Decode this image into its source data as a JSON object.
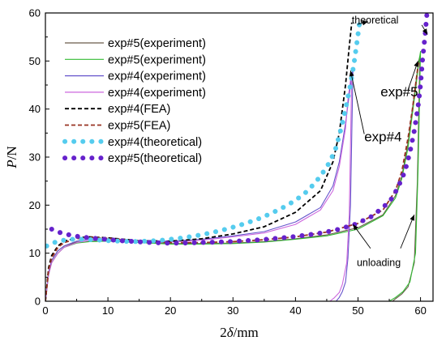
{
  "chart_data": {
    "type": "line",
    "title": "",
    "xlabel_prefix": "2",
    "xlabel_symbol": "δ",
    "xlabel_unit": "/mm",
    "ylabel_symbol": "P",
    "ylabel_unit": "/N",
    "xlim": [
      0,
      62
    ],
    "ylim": [
      0,
      60
    ],
    "xticks": [
      0,
      10,
      20,
      30,
      40,
      50,
      60
    ],
    "yticks": [
      0,
      10,
      20,
      30,
      40,
      50,
      60
    ],
    "grid": false,
    "legend_position": "top-left",
    "series": [
      {
        "name": "exp#5(experiment)",
        "color": "#6b5a4a",
        "style": "solid",
        "x": [
          0,
          0.5,
          1,
          2,
          3,
          5,
          7,
          10,
          15,
          20,
          25,
          30,
          35,
          40,
          45,
          50,
          54,
          56,
          57,
          58,
          58.7,
          59.3,
          59.7,
          59.9,
          59.5,
          59,
          58,
          57,
          56,
          55.5
        ],
        "y": [
          0,
          6,
          8.5,
          10.5,
          11.5,
          12.3,
          12.5,
          12.6,
          12.3,
          12,
          12,
          12.1,
          12.4,
          13,
          13.8,
          15.3,
          18,
          22,
          26,
          33,
          40,
          46,
          50,
          51,
          25,
          8,
          3,
          1.5,
          0.5,
          0
        ]
      },
      {
        "name": "exp#5(experiment)",
        "color": "#33bb33",
        "style": "solid",
        "x": [
          0,
          0.5,
          1,
          2,
          3,
          5,
          7,
          10,
          15,
          20,
          25,
          30,
          35,
          40,
          45,
          50,
          54,
          56,
          57,
          58,
          58.7,
          59.3,
          59.7,
          60,
          59.6,
          59.2,
          58.3,
          57.2,
          56,
          55
        ],
        "y": [
          0,
          5.5,
          8,
          10,
          11.2,
          12.1,
          12.4,
          12.5,
          12.2,
          11.9,
          11.9,
          12,
          12.3,
          12.9,
          13.6,
          15,
          17.8,
          21.5,
          25.5,
          32,
          39,
          45,
          49.5,
          52,
          27,
          10,
          4,
          2,
          0.8,
          0
        ]
      },
      {
        "name": "exp#4(experiment)",
        "color": "#6655cc",
        "style": "solid",
        "x": [
          0,
          0.5,
          1,
          2,
          3,
          5,
          7,
          10,
          15,
          20,
          25,
          30,
          35,
          40,
          44,
          46,
          47,
          48,
          48.6,
          49,
          49.2,
          48.8,
          48.4,
          48,
          47.5,
          47,
          46.5
        ],
        "y": [
          0,
          6,
          8.5,
          10.5,
          11.5,
          12.5,
          12.9,
          13,
          12.6,
          12.5,
          12.9,
          13.6,
          14.5,
          16.5,
          19.5,
          24,
          29,
          37,
          43,
          47,
          48.5,
          20,
          9,
          4,
          2,
          0.8,
          0
        ]
      },
      {
        "name": "exp#4(experiment)",
        "color": "#cc66dd",
        "style": "solid",
        "x": [
          0,
          0.5,
          1,
          2,
          3,
          5,
          7,
          10,
          15,
          20,
          25,
          30,
          35,
          40,
          44,
          46,
          47,
          48,
          48.4,
          48.8,
          49,
          48.6,
          48.2,
          47.5,
          47,
          46.2,
          45.5
        ],
        "y": [
          0,
          5.5,
          8,
          10,
          11.2,
          12.2,
          12.6,
          12.8,
          12.4,
          12.3,
          12.7,
          13.4,
          14.2,
          16,
          19,
          23,
          28,
          36,
          42,
          46,
          47.5,
          18,
          8,
          3.5,
          1.8,
          0.7,
          0
        ]
      },
      {
        "name": "exp#4(FEA)",
        "color": "#000000",
        "style": "dash",
        "x": [
          0,
          0.5,
          1,
          2,
          3,
          5,
          7,
          10,
          15,
          20,
          25,
          30,
          35,
          40,
          44,
          46,
          47,
          48,
          48.6,
          49
        ],
        "y": [
          0,
          7,
          9.5,
          11.5,
          12.5,
          13.2,
          13.4,
          13.2,
          12.6,
          12.5,
          13,
          14,
          15.5,
          18.5,
          23,
          29,
          35,
          45,
          53,
          58
        ]
      },
      {
        "name": "exp#5(FEA)",
        "color": "#993322",
        "style": "dash",
        "x": [
          0,
          0.5,
          1,
          2,
          3,
          5,
          7,
          10,
          15,
          20,
          25,
          30,
          35,
          40,
          45,
          50,
          54,
          56,
          57,
          58,
          58.7,
          59.3,
          59.7
        ],
        "y": [
          0,
          6.5,
          9,
          11.2,
          12.2,
          13,
          13.3,
          13.1,
          12.5,
          12.2,
          12.2,
          12.4,
          12.8,
          13.4,
          14.4,
          16.2,
          19,
          23,
          27,
          34,
          40,
          46,
          50
        ]
      },
      {
        "name": "exp#4(theoretical)",
        "color": "#55ccee",
        "style": "dot-big",
        "x": [
          0.2,
          1,
          2,
          4,
          6,
          8,
          10,
          12,
          14,
          16,
          18,
          20,
          22,
          24,
          26,
          28,
          30,
          32,
          34,
          36,
          38,
          40,
          42,
          44,
          45.5,
          46.5,
          47.3,
          48,
          48.7,
          49.3,
          49.8,
          50.3
        ],
        "y": [
          11.5,
          12,
          12.5,
          12.9,
          12.9,
          12.8,
          12.6,
          12.5,
          12.4,
          12.5,
          12.6,
          12.9,
          13.2,
          13.6,
          14.1,
          14.7,
          15.4,
          16.2,
          17.1,
          18.2,
          19.5,
          21,
          23,
          26,
          29,
          32,
          36,
          40,
          44.5,
          49,
          53.5,
          58.5
        ]
      },
      {
        "name": "exp#5(theoretical)",
        "color": "#6622cc",
        "style": "dot-big",
        "x": [
          1,
          2.5,
          4.5,
          7,
          9.5,
          12,
          14.5,
          17,
          19.5,
          22,
          24.5,
          27,
          29.5,
          32,
          34.5,
          37,
          39.5,
          42,
          44.5,
          47,
          49.5,
          52,
          54,
          55.5,
          56.5,
          57.5,
          58.3,
          59,
          59.6,
          60,
          60.3,
          60.7,
          61
        ],
        "y": [
          15,
          14.2,
          13.6,
          13.2,
          12.9,
          12.6,
          12.4,
          12.2,
          12.1,
          12.1,
          12.2,
          12.3,
          12.4,
          12.6,
          12.8,
          13.1,
          13.4,
          13.8,
          14.3,
          15,
          16,
          17.5,
          19.5,
          21.5,
          24,
          27,
          31,
          35.5,
          40.5,
          45,
          50,
          55,
          59.5
        ]
      }
    ],
    "annotations": [
      {
        "text": "theoretical",
        "size": "small",
        "x": 49,
        "y": 57.8,
        "arrows": [
          {
            "x1": 49.9,
            "y1": 57.6,
            "x2": 51.6,
            "y2": 58.2
          },
          {
            "x1": 60.2,
            "y1": 57.5,
            "x2": 61.1,
            "y2": 55.5
          }
        ]
      },
      {
        "text": "exp#5",
        "size": "big",
        "x": 53.6,
        "y": 42.6,
        "arrows": [
          {
            "x1": 58,
            "y1": 44,
            "x2": 59.6,
            "y2": 50
          }
        ]
      },
      {
        "text": "exp#4",
        "size": "big",
        "x": 51,
        "y": 33.3,
        "arrows": [
          {
            "x1": 51,
            "y1": 34.8,
            "x2": 48.8,
            "y2": 48
          }
        ]
      },
      {
        "text": "unloading",
        "size": "small",
        "x": 49.8,
        "y": 7.3,
        "arrows": [
          {
            "x1": 52,
            "y1": 11,
            "x2": 49.2,
            "y2": 16
          },
          {
            "x1": 56.8,
            "y1": 11,
            "x2": 59,
            "y2": 18
          }
        ]
      }
    ]
  }
}
